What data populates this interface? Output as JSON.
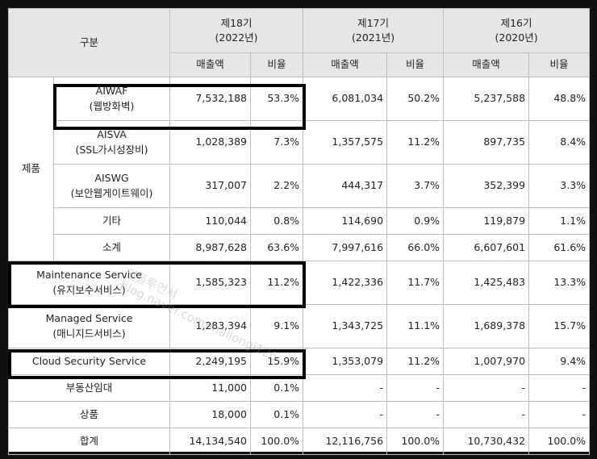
{
  "header": {
    "category": "구분",
    "periods": [
      {
        "name": "제18기",
        "year": "(2022년)"
      },
      {
        "name": "제17기",
        "year": "(2021년)"
      },
      {
        "name": "제16기",
        "year": "(2020년)"
      }
    ],
    "sales_label": "매출액",
    "ratio_label": "비율"
  },
  "group_label": "제품",
  "rows": [
    {
      "l1": "AIWAF",
      "l2": "(웹방화벽)",
      "v": [
        "7,532,188",
        "53.3%",
        "6,081,034",
        "50.2%",
        "5,237,588",
        "48.8%"
      ]
    },
    {
      "l1": "AISVA",
      "l2": "(SSL가시성장비)",
      "v": [
        "1,028,389",
        "7.3%",
        "1,357,575",
        "11.2%",
        "897,735",
        "8.4%"
      ]
    },
    {
      "l1": "AISWG",
      "l2": "(보안웹게이트웨이)",
      "v": [
        "317,007",
        "2.2%",
        "444,317",
        "3.7%",
        "352,399",
        "3.3%"
      ]
    },
    {
      "l1": "기타",
      "v": [
        "110,044",
        "0.8%",
        "114,690",
        "0.9%",
        "119,879",
        "1.1%"
      ]
    },
    {
      "l1": "소계",
      "v": [
        "8,987,628",
        "63.6%",
        "7,997,616",
        "66.0%",
        "6,607,601",
        "61.6%"
      ]
    },
    {
      "l1": "Maintenance Service",
      "l2": "(유지보수서비스)",
      "v": [
        "1,585,323",
        "11.2%",
        "1,422,336",
        "11.7%",
        "1,425,483",
        "13.3%"
      ]
    },
    {
      "l1": "Managed Service",
      "l2": "(매니지드서비스)",
      "v": [
        "1,283,394",
        "9.1%",
        "1,343,725",
        "11.1%",
        "1,689,378",
        "15.7%"
      ]
    },
    {
      "l1": "Cloud Security Service",
      "v": [
        "2,249,195",
        "15.9%",
        "1,353,079",
        "11.2%",
        "1,007,970",
        "9.4%"
      ]
    },
    {
      "l1": "부동산임대",
      "v": [
        "11,000",
        "0.1%",
        "-",
        "-",
        "-",
        "-"
      ]
    },
    {
      "l1": "상품",
      "v": [
        "18,000",
        "0.1%",
        "-",
        "-",
        "-",
        "-"
      ]
    },
    {
      "l1": "합계",
      "v": [
        "14,134,540",
        "100.0%",
        "12,116,756",
        "100.0%",
        "10,730,432",
        "100.0%"
      ]
    }
  ],
  "watermark": [
    "인플루언서",
    "blog.naver.com/mallongi126"
  ]
}
